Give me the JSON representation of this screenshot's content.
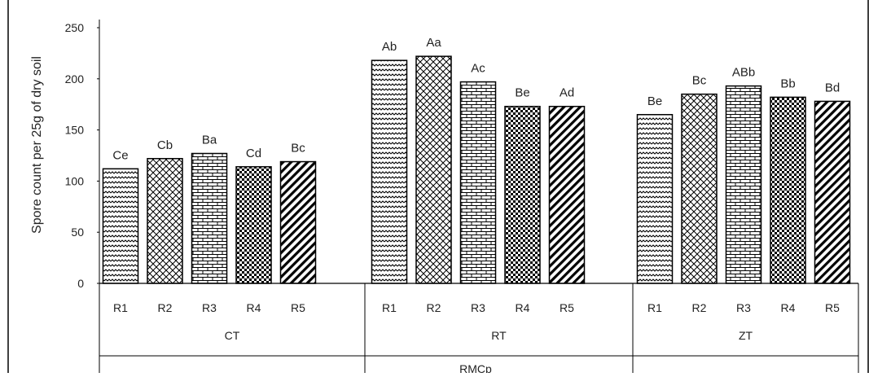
{
  "chart_data": {
    "type": "bar",
    "ylabel": "Spore count per 25g of dry soil",
    "xlabel": "RMCp",
    "ylim": [
      0,
      250
    ],
    "yticks": [
      0,
      50,
      100,
      150,
      200,
      250
    ],
    "grid": false,
    "patterns": [
      "zigzag",
      "diamond-lattice",
      "brick",
      "checker",
      "diagonal-stripes"
    ],
    "groups": [
      {
        "name": "CT",
        "bars": [
          {
            "label": "R1",
            "value": 112,
            "letter": "Ce"
          },
          {
            "label": "R2",
            "value": 122,
            "letter": "Cb"
          },
          {
            "label": "R3",
            "value": 127,
            "letter": "Ba"
          },
          {
            "label": "R4",
            "value": 114,
            "letter": "Cd"
          },
          {
            "label": "R5",
            "value": 119,
            "letter": "Bc"
          }
        ]
      },
      {
        "name": "RT",
        "bars": [
          {
            "label": "R1",
            "value": 218,
            "letter": "Ab"
          },
          {
            "label": "R2",
            "value": 222,
            "letter": "Aa"
          },
          {
            "label": "R3",
            "value": 197,
            "letter": "Ac"
          },
          {
            "label": "R4",
            "value": 173,
            "letter": "Be"
          },
          {
            "label": "R5",
            "value": 173,
            "letter": "Ad"
          }
        ]
      },
      {
        "name": "ZT",
        "bars": [
          {
            "label": "R1",
            "value": 165,
            "letter": "Be"
          },
          {
            "label": "R2",
            "value": 185,
            "letter": "Bc"
          },
          {
            "label": "R3",
            "value": 193,
            "letter": "ABb"
          },
          {
            "label": "R4",
            "value": 182,
            "letter": "Bb"
          },
          {
            "label": "R5",
            "value": 178,
            "letter": "Bd"
          }
        ]
      }
    ]
  }
}
